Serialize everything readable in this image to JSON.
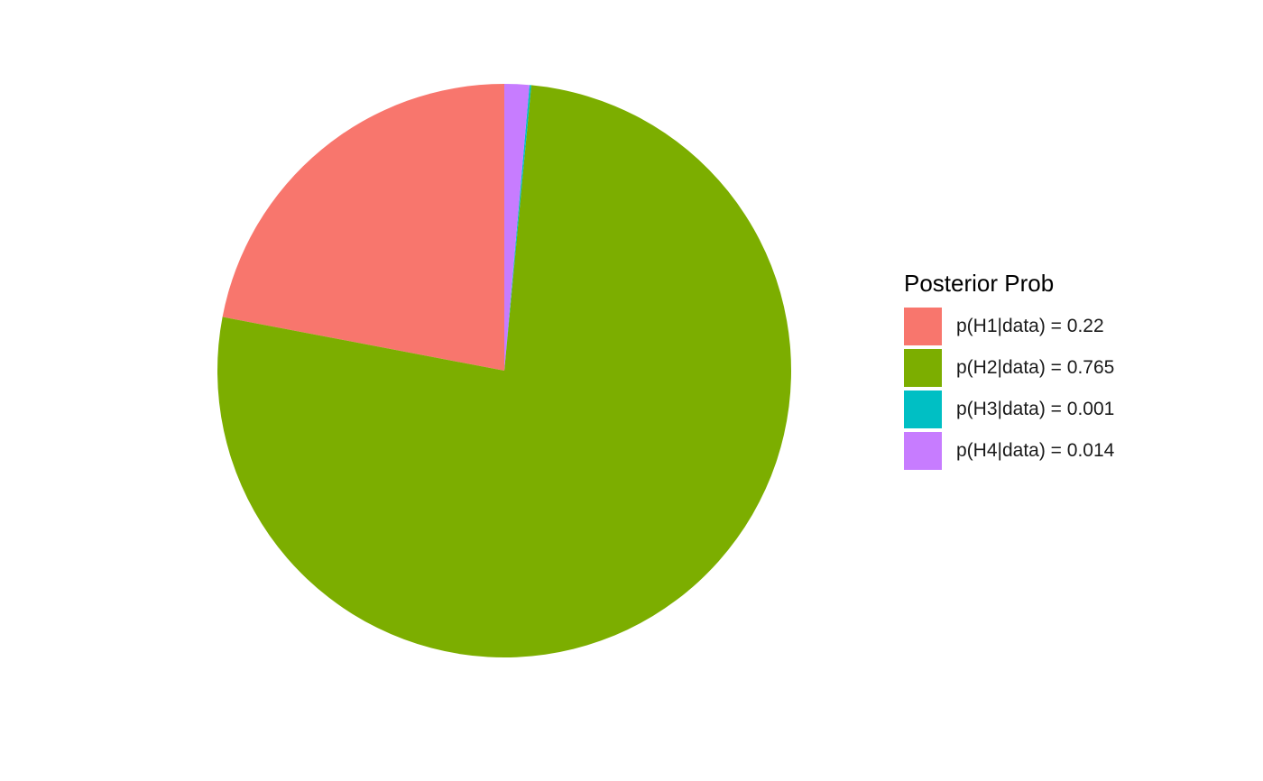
{
  "chart_data": {
    "type": "pie",
    "title": "",
    "legend_title": "Posterior Prob",
    "legend_position": "right",
    "categories": [
      "p(H1|data) = 0.22",
      "p(H2|data) = 0.765",
      "p(H3|data) = 0.001",
      "p(H4|data) = 0.014"
    ],
    "values": [
      0.22,
      0.765,
      0.001,
      0.014
    ],
    "colors": [
      "#F8766D",
      "#7CAE00",
      "#00BFC4",
      "#C77CFF"
    ],
    "start": "top",
    "direction": "counter-clockwise",
    "grid": false
  }
}
